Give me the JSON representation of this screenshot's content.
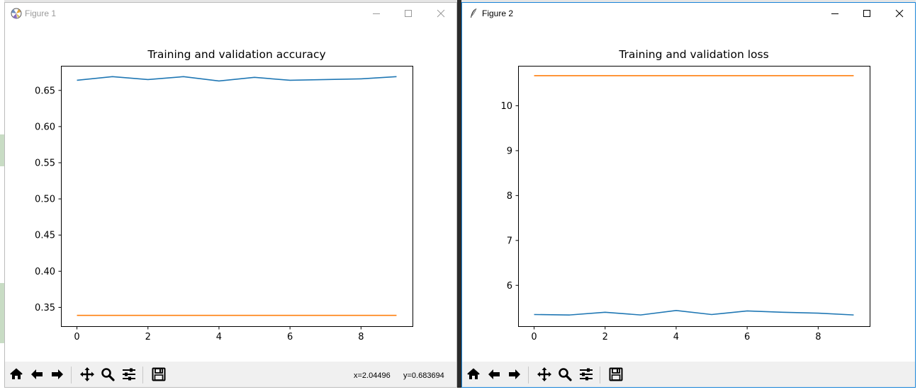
{
  "windows": [
    {
      "title": "Figure 1",
      "active": false,
      "status": {
        "x": "x=2.04496",
        "y": "y=0.683694"
      },
      "chart_data": {
        "type": "line",
        "title": "Training and validation accuracy",
        "x": [
          0,
          1,
          2,
          3,
          4,
          5,
          6,
          7,
          8,
          9
        ],
        "xlim": [
          -0.45,
          9.45
        ],
        "ylim": [
          0.324,
          0.684
        ],
        "xticks": [
          0,
          2,
          4,
          6,
          8
        ],
        "xtick_labels": [
          "0",
          "2",
          "4",
          "6",
          "8"
        ],
        "yticks": [
          0.35,
          0.4,
          0.45,
          0.5,
          0.55,
          0.6,
          0.65
        ],
        "ytick_labels": [
          "0.35",
          "0.40",
          "0.45",
          "0.50",
          "0.55",
          "0.60",
          "0.65"
        ],
        "grid": false,
        "series": [
          {
            "color": "#1f77b4",
            "values": [
              0.664,
              0.669,
              0.665,
              0.669,
              0.663,
              0.668,
              0.664,
              0.665,
              0.666,
              0.669
            ]
          },
          {
            "color": "#ff7f0e",
            "values": [
              0.339,
              0.339,
              0.339,
              0.339,
              0.339,
              0.339,
              0.339,
              0.339,
              0.339,
              0.339
            ]
          }
        ]
      }
    },
    {
      "title": "Figure 2",
      "active": true,
      "status": {
        "x": "",
        "y": ""
      },
      "chart_data": {
        "type": "line",
        "title": "Training and validation loss",
        "x": [
          0,
          1,
          2,
          3,
          4,
          5,
          6,
          7,
          8,
          9
        ],
        "xlim": [
          -0.45,
          9.45
        ],
        "ylim": [
          5.09,
          10.89
        ],
        "xticks": [
          0,
          2,
          4,
          6,
          8
        ],
        "xtick_labels": [
          "0",
          "2",
          "4",
          "6",
          "8"
        ],
        "yticks": [
          6,
          7,
          8,
          9,
          10
        ],
        "ytick_labels": [
          "6",
          "7",
          "8",
          "9",
          "10"
        ],
        "grid": false,
        "series": [
          {
            "color": "#1f77b4",
            "values": [
              5.35,
              5.34,
              5.4,
              5.34,
              5.44,
              5.35,
              5.43,
              5.4,
              5.38,
              5.34
            ]
          },
          {
            "color": "#ff7f0e",
            "values": [
              10.67,
              10.67,
              10.67,
              10.67,
              10.67,
              10.67,
              10.67,
              10.67,
              10.67,
              10.67
            ]
          }
        ]
      }
    }
  ],
  "toolbar_icons": [
    "home-icon",
    "back-arrow-icon",
    "forward-arrow-icon",
    "pan-icon",
    "zoom-icon",
    "configure-subplots-icon",
    "save-icon"
  ],
  "colors": {
    "line1": "#1f77b4",
    "line2": "#ff7f0e",
    "active_border": "#1883d7"
  }
}
